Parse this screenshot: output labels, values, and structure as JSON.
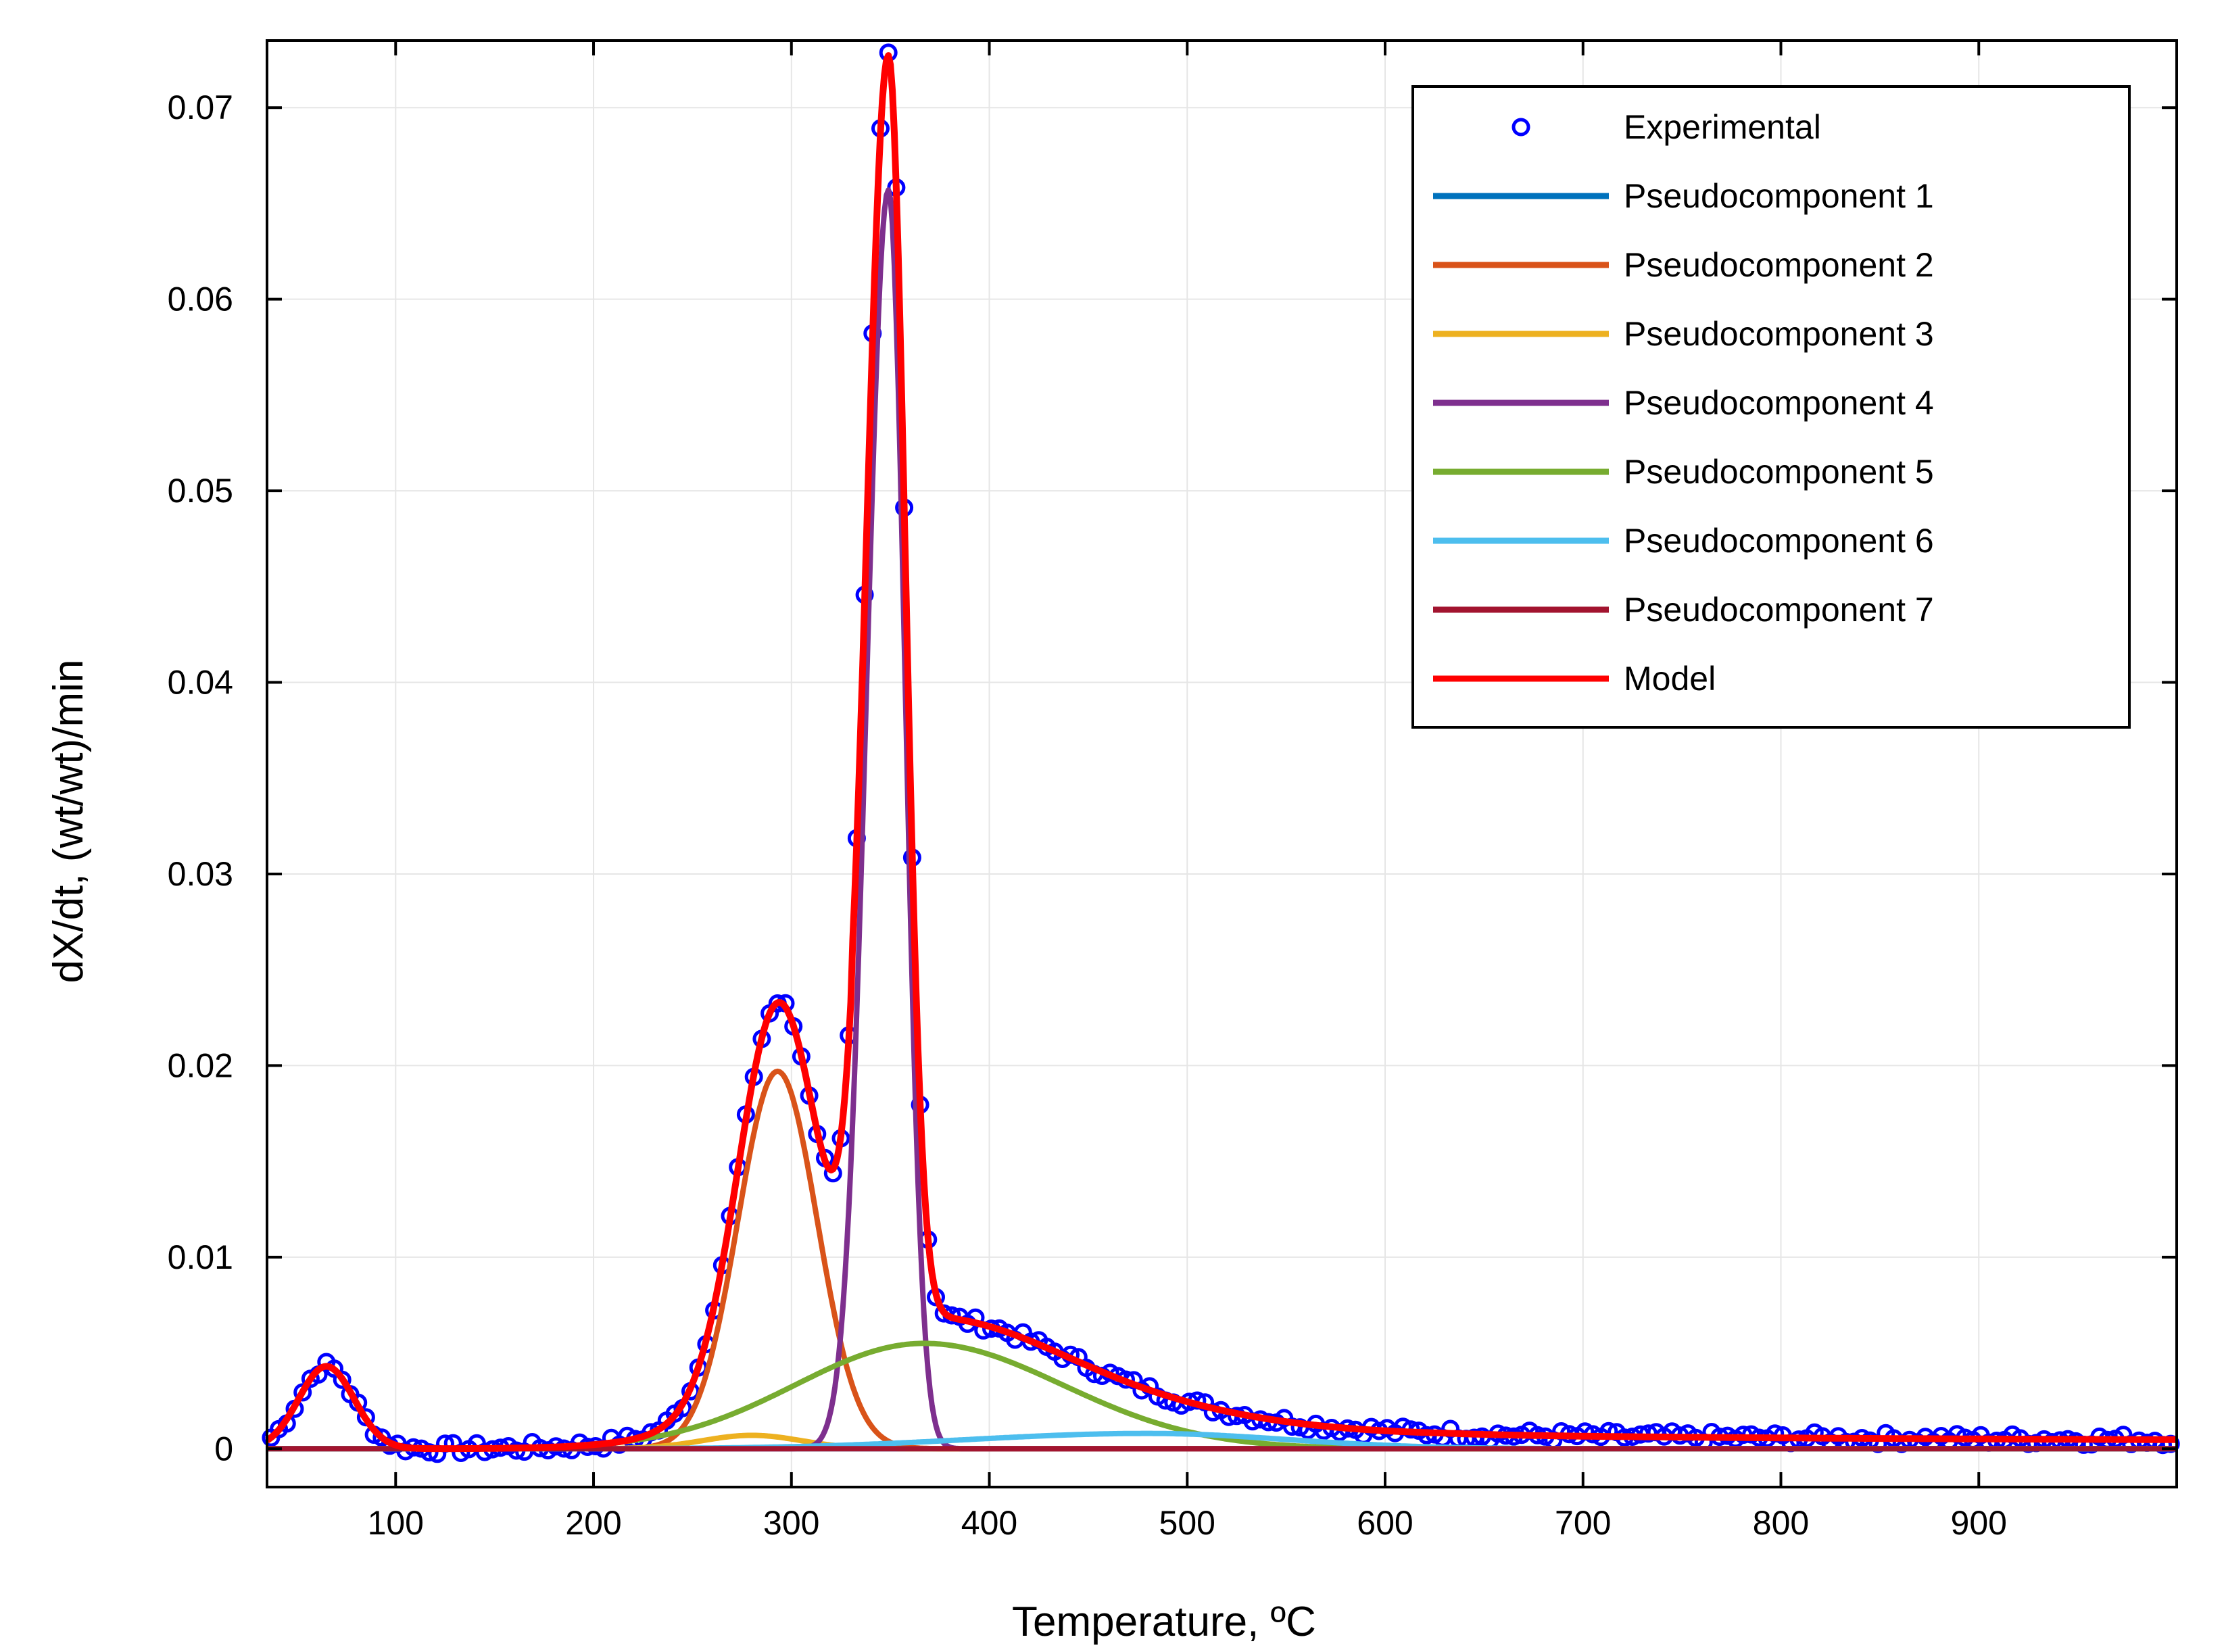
{
  "chart_data": {
    "type": "line",
    "xlabel": "Temperature, ºC",
    "ylabel": "dX/dt, (wt/wt)/min",
    "xlim": [
      35,
      1000
    ],
    "ylim": [
      -0.002,
      0.0735
    ],
    "xticks": [
      100,
      200,
      300,
      400,
      500,
      600,
      700,
      800,
      900
    ],
    "xtick_labels": [
      "100",
      "200",
      "300",
      "400",
      "500",
      "600",
      "700",
      "800",
      "900"
    ],
    "yticks": [
      0,
      0.01,
      0.02,
      0.03,
      0.04,
      0.05,
      0.06,
      0.07
    ],
    "ytick_labels": [
      "0",
      "0.01",
      "0.02",
      "0.03",
      "0.04",
      "0.05",
      "0.06",
      "0.07"
    ],
    "grid": true,
    "legend_position": "top-right",
    "series": [
      {
        "name": "Experimental",
        "kind": "markers",
        "color": "#0000ff"
      },
      {
        "name": "Pseudocomponent 1",
        "kind": "line",
        "color": "#0072bd",
        "model": "gauss",
        "peak_x": 65,
        "peak_y": 0.0,
        "width": 12
      },
      {
        "name": "Pseudocomponent 2",
        "kind": "line",
        "color": "#d95319",
        "model": "gauss",
        "peak_x": 293,
        "peak_y": 0.0197,
        "width": 20
      },
      {
        "name": "Pseudocomponent 3",
        "kind": "line",
        "color": "#edb120",
        "model": "gauss",
        "peak_x": 280,
        "peak_y": 0.0007,
        "width": 25
      },
      {
        "name": "Pseudocomponent 4",
        "kind": "line",
        "color": "#7e2f8e",
        "model": "skew",
        "peak_x": 349,
        "peak_y": 0.0657,
        "width_left": 11,
        "width_right": 8.5
      },
      {
        "name": "Pseudocomponent 5",
        "kind": "line",
        "color": "#77ac30",
        "model": "skew",
        "peak_x": 367,
        "peak_y": 0.0055,
        "width_left": 65,
        "width_right": 70
      },
      {
        "name": "Pseudocomponent 6",
        "kind": "line",
        "color": "#4dbeee",
        "model": "skew",
        "peak_x": 480,
        "peak_y": 0.0008,
        "width_left": 90,
        "width_right": 70
      },
      {
        "name": "Pseudocomponent 7",
        "kind": "line",
        "color": "#a2142f",
        "model": "flat",
        "peak_x": 0,
        "peak_y": 0.0
      },
      {
        "name": "Model",
        "kind": "line",
        "color": "#ff0000"
      }
    ],
    "features": {
      "early_peak": {
        "x": 65,
        "y": 0.0043,
        "width": 14
      },
      "tail": {
        "level": 0.0011,
        "decay": 250
      },
      "final_level": 0.0004
    }
  }
}
